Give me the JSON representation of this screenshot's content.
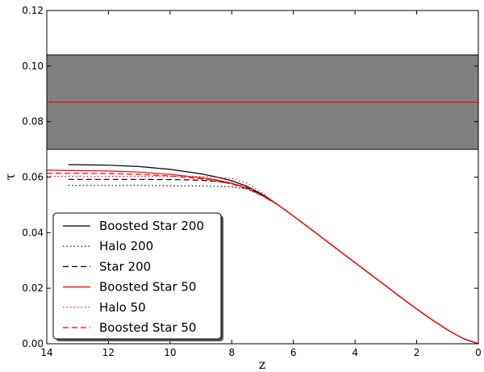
{
  "chart_data": {
    "type": "line",
    "title": "",
    "xlabel": "z",
    "ylabel": "τ",
    "xlim": [
      14,
      0
    ],
    "ylim": [
      0,
      0.12
    ],
    "x_ticks": [
      "14",
      "12",
      "10",
      "8",
      "6",
      "4",
      "2",
      "0"
    ],
    "y_ticks": [
      "0.00",
      "0.02",
      "0.04",
      "0.06",
      "0.08",
      "0.10",
      "0.12"
    ],
    "grid": false,
    "legend_position": "lower-left",
    "band": {
      "y_low": 0.07,
      "y_high": 0.104,
      "center": 0.087,
      "fill_color": "#808080",
      "line_color": "#ff0000"
    },
    "series": [
      {
        "name": "Boosted Star 200",
        "color": "#000000",
        "dash": "solid",
        "x": [
          13.3,
          12,
          11,
          10,
          9,
          8.5,
          8,
          7.5,
          7,
          6.5,
          6,
          5.5,
          5,
          4.5,
          4,
          3.5,
          3,
          2.5,
          2,
          1.5,
          1,
          0.5,
          0
        ],
        "y": [
          0.0645,
          0.0643,
          0.0638,
          0.0628,
          0.0612,
          0.0601,
          0.0587,
          0.0567,
          0.0537,
          0.05,
          0.046,
          0.0418,
          0.0376,
          0.0334,
          0.0292,
          0.025,
          0.0208,
          0.0166,
          0.0125,
          0.0086,
          0.005,
          0.0019,
          0.0
        ]
      },
      {
        "name": "Halo 200",
        "color": "#000000",
        "dash": "dotted",
        "x": [
          13.3,
          12,
          11,
          10,
          9,
          8.5,
          8,
          7.5,
          7,
          6.5,
          6,
          5.5,
          5,
          4.5,
          4,
          3.5,
          3,
          2.5,
          2,
          1.5,
          1,
          0.5,
          0
        ],
        "y": [
          0.057,
          0.057,
          0.057,
          0.0569,
          0.0568,
          0.0567,
          0.0565,
          0.0557,
          0.0535,
          0.05,
          0.046,
          0.0418,
          0.0376,
          0.0334,
          0.0292,
          0.025,
          0.0208,
          0.0166,
          0.0125,
          0.0086,
          0.005,
          0.0019,
          0.0
        ]
      },
      {
        "name": "Star 200",
        "color": "#000000",
        "dash": "dashed",
        "x": [
          13.3,
          12,
          11,
          10,
          9,
          8.5,
          8,
          7.5,
          7,
          6.5,
          6,
          5.5,
          5,
          4.5,
          4,
          3.5,
          3,
          2.5,
          2,
          1.5,
          1,
          0.5,
          0
        ],
        "y": [
          0.0592,
          0.0592,
          0.0592,
          0.0591,
          0.0589,
          0.0585,
          0.0578,
          0.0562,
          0.0535,
          0.05,
          0.046,
          0.0418,
          0.0376,
          0.0334,
          0.0292,
          0.025,
          0.0208,
          0.0166,
          0.0125,
          0.0086,
          0.005,
          0.0019,
          0.0
        ]
      },
      {
        "name": "Boosted Star 50",
        "color": "#ff0000",
        "dash": "solid",
        "x": [
          14,
          12,
          11,
          10,
          9,
          8.5,
          8,
          7.5,
          7,
          6.5,
          6,
          5.5,
          5,
          4.5,
          4,
          3.5,
          3,
          2.5,
          2,
          1.5,
          1,
          0.5,
          0
        ],
        "y": [
          0.0625,
          0.0622,
          0.0618,
          0.061,
          0.0598,
          0.059,
          0.0578,
          0.056,
          0.0533,
          0.05,
          0.046,
          0.0418,
          0.0376,
          0.0334,
          0.0292,
          0.025,
          0.0208,
          0.0166,
          0.0125,
          0.0086,
          0.005,
          0.0019,
          0.0
        ]
      },
      {
        "name": "Halo 50",
        "color": "#ff0000",
        "dash": "dotted",
        "x": [
          14,
          12,
          11,
          10,
          9,
          8.5,
          8,
          7.5,
          7,
          6.5,
          6,
          5.5,
          5,
          4.5,
          4,
          3.5,
          3,
          2.5,
          2,
          1.5,
          1,
          0.5,
          0
        ],
        "y": [
          0.0603,
          0.0603,
          0.0603,
          0.0603,
          0.0602,
          0.06,
          0.0595,
          0.0578,
          0.0542,
          0.05,
          0.046,
          0.0418,
          0.0376,
          0.0334,
          0.0292,
          0.025,
          0.0208,
          0.0166,
          0.0125,
          0.0086,
          0.005,
          0.0019,
          0.0
        ]
      },
      {
        "name": "Boosted Star 50",
        "color": "#ff0000",
        "dash": "dashed",
        "x": [
          14,
          12,
          11,
          10,
          9,
          8.5,
          8,
          7.5,
          7,
          6.5,
          6,
          5.5,
          5,
          4.5,
          4,
          3.5,
          3,
          2.5,
          2,
          1.5,
          1,
          0.5,
          0
        ],
        "y": [
          0.0614,
          0.0613,
          0.061,
          0.0604,
          0.0594,
          0.0586,
          0.0575,
          0.0558,
          0.0532,
          0.05,
          0.046,
          0.0418,
          0.0376,
          0.0334,
          0.0292,
          0.025,
          0.0208,
          0.0166,
          0.0125,
          0.0086,
          0.005,
          0.0019,
          0.0
        ]
      }
    ]
  }
}
